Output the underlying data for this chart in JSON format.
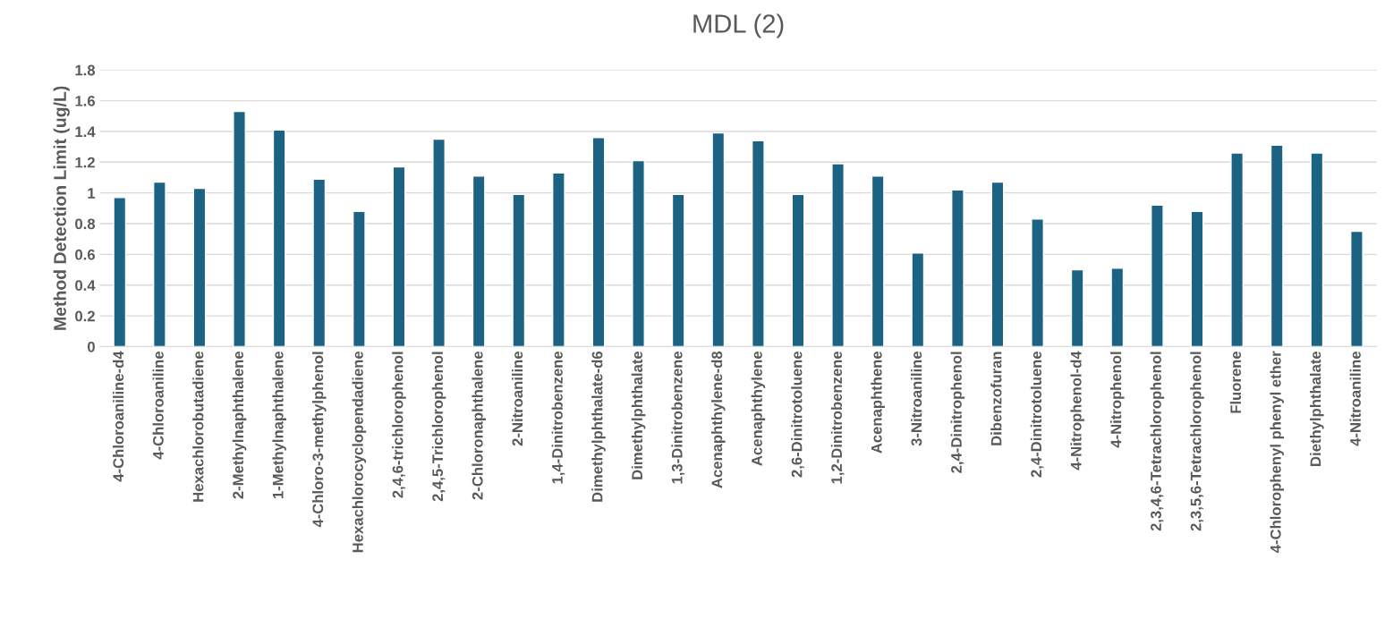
{
  "chart_data": {
    "type": "bar",
    "title": "MDL (2)",
    "ylabel": "Method Detection Limit (ug/L)",
    "categories": [
      "4-Chloroaniline-d4",
      "4-Chloroaniline",
      "Hexachlorobutadiene",
      "2-Methylnaphthalene",
      "1-Methylnaphthalene",
      "4-Chloro-3-methylphenol",
      "Hexachlorocyclopendadiene",
      "2,4,6-trichlorophenol",
      "2,4,5-Trichlorophenol",
      "2-Chloronaphthalene",
      "2-Nitroaniline",
      "1,4-Dinitrobenzene",
      "Dimethylphthalate-d6",
      "Dimethylphthalate",
      "1,3-Dinitrobenzene",
      "Acenaphthylene-d8",
      "Acenaphthylene",
      "2,6-Dinitrotoluene",
      "1,2-Dinitrobenzene",
      "Acenaphthene",
      "3-Nitroaniline",
      "2,4-Dinitrophenol",
      "Dibenzofuran",
      "2,4-Dinitrotoluene",
      "4-Nitrophenol-d4",
      "4-Nitrophenol",
      "2,3,4,6-Tetrachlorophenol",
      "2,3,5,6-Tetrachlorophenol",
      "Fluorene",
      "4-Chlorophenyl phenyl ether",
      "Diethylphthalate",
      "4-Nitroaniline"
    ],
    "values": [
      0.97,
      1.07,
      1.03,
      1.53,
      1.41,
      1.09,
      0.88,
      1.17,
      1.35,
      1.11,
      0.99,
      1.13,
      1.36,
      1.21,
      0.99,
      1.39,
      1.34,
      0.99,
      1.19,
      1.11,
      0.61,
      1.02,
      1.07,
      0.83,
      0.5,
      0.51,
      0.92,
      0.88,
      1.26,
      1.31,
      1.26,
      0.75
    ],
    "color": "#1b6283",
    "ylim": [
      0,
      1.8
    ],
    "yticks": [
      0,
      0.2,
      0.4,
      0.6,
      0.8,
      1,
      1.2,
      1.4,
      1.6,
      1.8
    ],
    "grid": "y",
    "legend": false
  }
}
